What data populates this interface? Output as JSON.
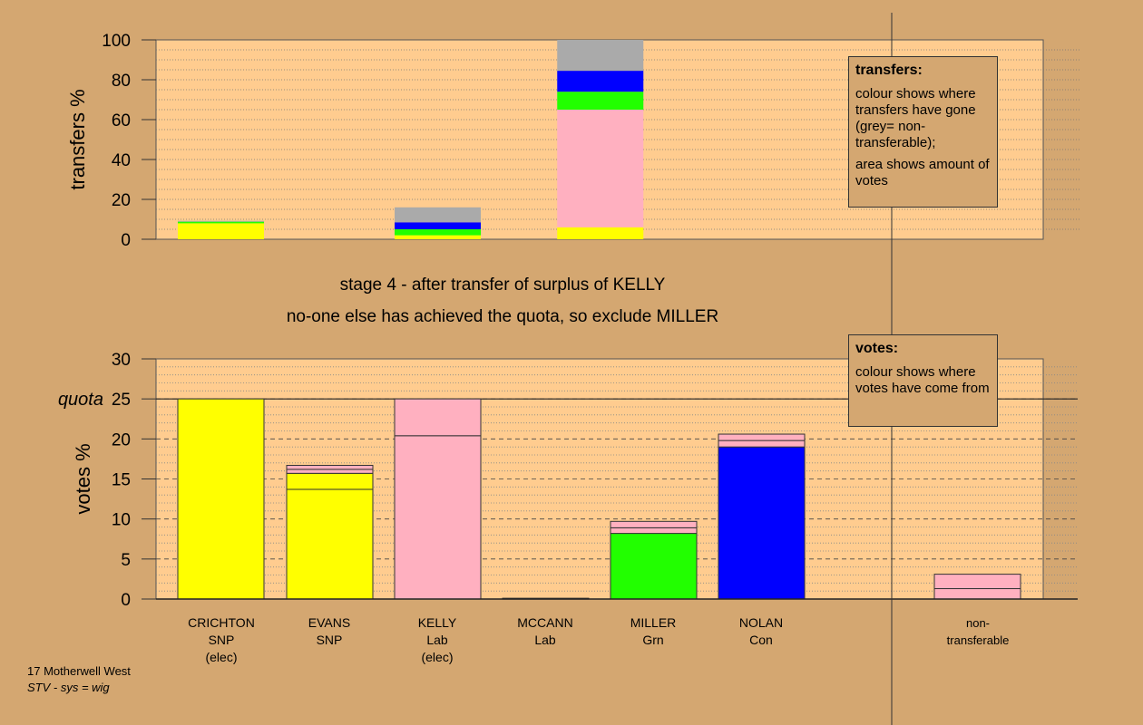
{
  "headings": {
    "line1": "stage 4 - after transfer of surplus of KELLY",
    "line2": "no-one else has achieved the quota, so exclude MILLER"
  },
  "footer": {
    "line1": "17 Motherwell West",
    "line2": "STV - sys = wig"
  },
  "legends": {
    "transfers": {
      "title": "transfers:",
      "p1": "colour shows where transfers have gone (grey= non-transferable);",
      "p2": "area shows amount of votes"
    },
    "votes": {
      "title": "votes:",
      "p1": "colour shows where votes have come from"
    }
  },
  "candidates": [
    {
      "name": "CRICHTON",
      "party": "SNP",
      "status": "(elec)"
    },
    {
      "name": "EVANS",
      "party": "SNP",
      "status": ""
    },
    {
      "name": "KELLY",
      "party": "Lab",
      "status": "(elec)"
    },
    {
      "name": "MCCANN",
      "party": "Lab",
      "status": ""
    },
    {
      "name": "MILLER",
      "party": "Grn",
      "status": ""
    },
    {
      "name": "NOLAN",
      "party": "Con",
      "status": ""
    },
    {
      "name": "non-",
      "party": "transferable",
      "status": ""
    }
  ],
  "colors": {
    "background": "#D4A771",
    "plot_bg": "#FFCC8F",
    "snp": "#FFFF00",
    "lab": "#FFB0C0",
    "grn": "#22FF00",
    "con": "#0000FF",
    "nontransferable": "#AAAAAA"
  },
  "chart_data": [
    {
      "type": "bar",
      "stacked": true,
      "ylabel": "transfers %",
      "ylim": [
        0,
        100
      ],
      "yticks": [
        0,
        20,
        40,
        60,
        80,
        100
      ],
      "note": "stacked segment values in percent, bottom to top",
      "bars": [
        {
          "slot": 0,
          "segments": [
            {
              "color": "snp",
              "value": 8.0
            },
            {
              "color": "grn",
              "value": 0.8
            },
            {
              "color": "nontransferable",
              "value": 0.4
            }
          ]
        },
        {
          "slot": 2,
          "segments": [
            {
              "color": "snp",
              "value": 2.0
            },
            {
              "color": "grn",
              "value": 3.0
            },
            {
              "color": "con",
              "value": 3.5
            },
            {
              "color": "nontransferable",
              "value": 7.5
            }
          ]
        },
        {
          "slot": 3.5,
          "segments": [
            {
              "color": "snp",
              "value": 6.0
            },
            {
              "color": "lab",
              "value": 59.0
            },
            {
              "color": "grn",
              "value": 9.0
            },
            {
              "color": "con",
              "value": 10.5
            },
            {
              "color": "nontransferable",
              "value": 15.5
            }
          ]
        }
      ]
    },
    {
      "type": "bar",
      "stacked": true,
      "ylabel": "votes %",
      "ylim": [
        0,
        30
      ],
      "yticks": [
        0,
        5,
        10,
        15,
        20,
        25,
        30
      ],
      "quota": {
        "label": "quota",
        "value": 25
      },
      "bars": [
        {
          "candidate": "CRICHTON",
          "segments": [
            {
              "color": "snp",
              "value": 25.0
            }
          ]
        },
        {
          "candidate": "EVANS",
          "segments": [
            {
              "color": "snp",
              "value": 13.7
            },
            {
              "color": "snp",
              "value": 2.0
            },
            {
              "color": "lab",
              "value": 0.5
            },
            {
              "color": "lab",
              "value": 0.5
            }
          ]
        },
        {
          "candidate": "KELLY",
          "segments": [
            {
              "color": "lab",
              "value": 20.4
            },
            {
              "color": "lab",
              "value": 4.6
            }
          ]
        },
        {
          "candidate": "MCCANN",
          "segments": [
            {
              "color": "lab",
              "value": 0.1
            }
          ]
        },
        {
          "candidate": "MILLER",
          "segments": [
            {
              "color": "grn",
              "value": 8.2
            },
            {
              "color": "lab",
              "value": 0.7
            },
            {
              "color": "lab",
              "value": 0.8
            }
          ]
        },
        {
          "candidate": "NOLAN",
          "segments": [
            {
              "color": "con",
              "value": 19.0
            },
            {
              "color": "lab",
              "value": 0.8
            },
            {
              "color": "lab",
              "value": 0.8
            }
          ]
        },
        {
          "candidate": "non-transferable",
          "segments": [
            {
              "color": "lab",
              "value": 1.3
            },
            {
              "color": "lab",
              "value": 1.8
            }
          ]
        }
      ]
    }
  ]
}
